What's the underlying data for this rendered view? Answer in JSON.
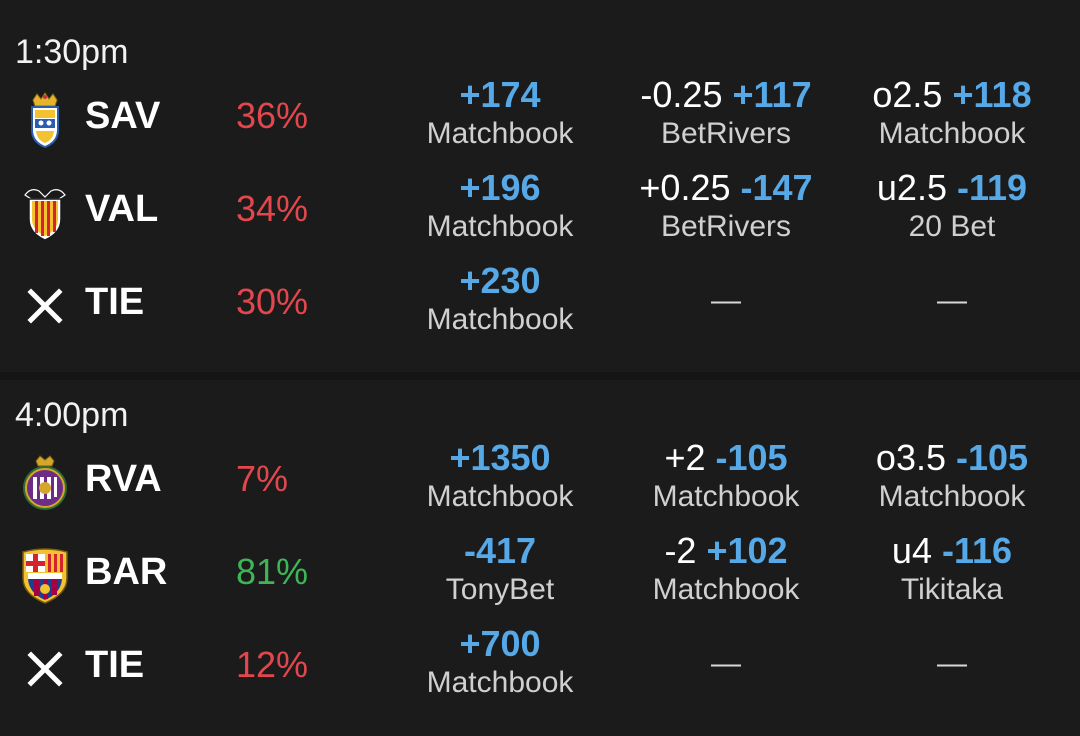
{
  "colors": {
    "loss": "#e3474d",
    "win": "#3db657",
    "price": "#56a8e6"
  },
  "games": [
    {
      "time": "1:30pm",
      "rows": [
        {
          "logo": "las-palmas-crest-icon",
          "team": "SAV",
          "pct": "36%",
          "pct_color": "#e3474d",
          "ml_price": "+174",
          "ml_book": "Matchbook",
          "spread_line": "-0.25",
          "spread_price": "+117",
          "spread_book": "BetRivers",
          "total_line": "o2.5",
          "total_price": "+118",
          "total_book": "Matchbook"
        },
        {
          "logo": "valencia-crest-icon",
          "team": "VAL",
          "pct": "34%",
          "pct_color": "#e3474d",
          "ml_price": "+196",
          "ml_book": "Matchbook",
          "spread_line": "+0.25",
          "spread_price": "-147",
          "spread_book": "BetRivers",
          "total_line": "u2.5",
          "total_price": "-119",
          "total_book": "20 Bet"
        },
        {
          "logo": "tie-x-icon",
          "team": "TIE",
          "pct": "30%",
          "pct_color": "#e3474d",
          "ml_price": "+230",
          "ml_book": "Matchbook",
          "spread_empty": "—",
          "total_empty": "—"
        }
      ]
    },
    {
      "time": "4:00pm",
      "rows": [
        {
          "logo": "valladolid-crest-icon",
          "team": "RVA",
          "pct": "7%",
          "pct_color": "#e3474d",
          "ml_price": "+1350",
          "ml_book": "Matchbook",
          "spread_line": "+2",
          "spread_price": "-105",
          "spread_book": "Matchbook",
          "total_line": "o3.5",
          "total_price": "-105",
          "total_book": "Matchbook"
        },
        {
          "logo": "barcelona-crest-icon",
          "team": "BAR",
          "pct": "81%",
          "pct_color": "#3db657",
          "ml_price": "-417",
          "ml_book": "TonyBet",
          "spread_line": "-2",
          "spread_price": "+102",
          "spread_book": "Matchbook",
          "total_line": "u4",
          "total_price": "-116",
          "total_book": "Tikitaka"
        },
        {
          "logo": "tie-x-icon",
          "team": "TIE",
          "pct": "12%",
          "pct_color": "#e3474d",
          "ml_price": "+700",
          "ml_book": "Matchbook",
          "spread_empty": "—",
          "total_empty": "—"
        }
      ]
    }
  ]
}
